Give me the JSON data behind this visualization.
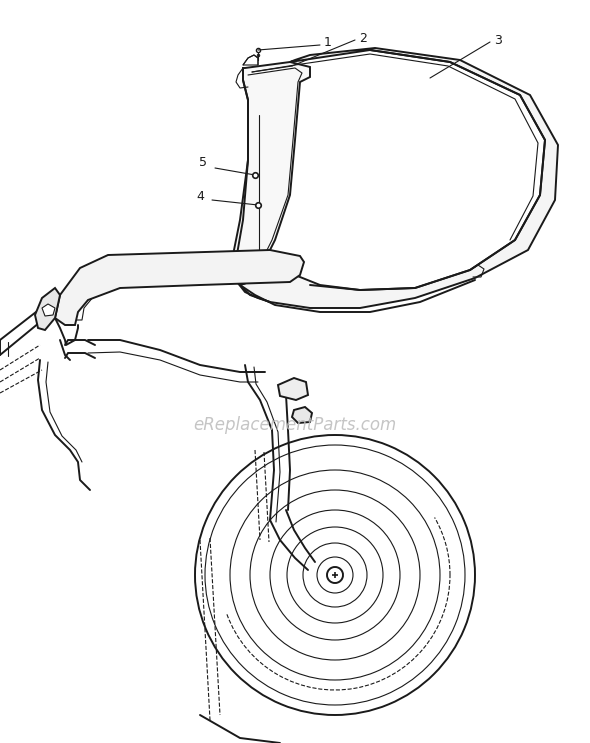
{
  "background_color": "#ffffff",
  "line_color": "#1a1a1a",
  "watermark_text": "eReplacementParts.com",
  "watermark_color": "#bbbbbb",
  "figsize": [
    5.9,
    7.43
  ],
  "dpi": 100
}
